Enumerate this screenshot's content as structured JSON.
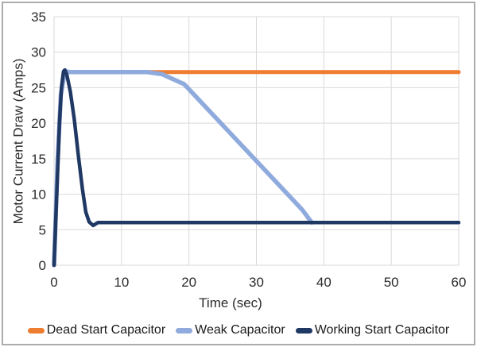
{
  "frame": {
    "border_color": "#ACACAC",
    "background": "#FFFFFF"
  },
  "chart_data": {
    "type": "line",
    "title": "",
    "xlabel": "Time (sec)",
    "ylabel": "Motor Current Draw (Amps)",
    "xlim": [
      0,
      60
    ],
    "ylim": [
      0,
      35
    ],
    "xticks": [
      0,
      10,
      20,
      30,
      40,
      50,
      60
    ],
    "yticks": [
      0,
      5,
      10,
      15,
      20,
      25,
      30,
      35
    ],
    "grid": true,
    "gridline_color": "#D9D9D9",
    "axis_text_color": "#2B2B2B",
    "legend_position": "bottom",
    "series": [
      {
        "name": "Dead Start Capacitor",
        "color": "#ED7D31",
        "points": [
          [
            0,
            0
          ],
          [
            0.5,
            14
          ],
          [
            1,
            24
          ],
          [
            1.6,
            27.3
          ],
          [
            2.5,
            27.2
          ],
          [
            60,
            27.2
          ]
        ]
      },
      {
        "name": "Weak Capacitor",
        "color": "#8FAADC",
        "points": [
          [
            0,
            0
          ],
          [
            0.5,
            14
          ],
          [
            1,
            24
          ],
          [
            1.6,
            27.3
          ],
          [
            2.5,
            27.2
          ],
          [
            13.8,
            27.2
          ],
          [
            16,
            26.9
          ],
          [
            19.3,
            25.5
          ],
          [
            36.8,
            7.8
          ],
          [
            38.2,
            6
          ]
        ]
      },
      {
        "name": "Working Start Capacitor",
        "color": "#1F3864",
        "points": [
          [
            0,
            0
          ],
          [
            0.4,
            10
          ],
          [
            0.8,
            20
          ],
          [
            1.1,
            25
          ],
          [
            1.4,
            27.3
          ],
          [
            1.6,
            27.5
          ],
          [
            1.9,
            26.8
          ],
          [
            2.4,
            24.5
          ],
          [
            3,
            20.5
          ],
          [
            3.6,
            15.5
          ],
          [
            4.2,
            10.8
          ],
          [
            4.7,
            7.5
          ],
          [
            5.2,
            6.1
          ],
          [
            5.8,
            5.6
          ],
          [
            6.5,
            6
          ],
          [
            60,
            6
          ]
        ]
      }
    ]
  }
}
